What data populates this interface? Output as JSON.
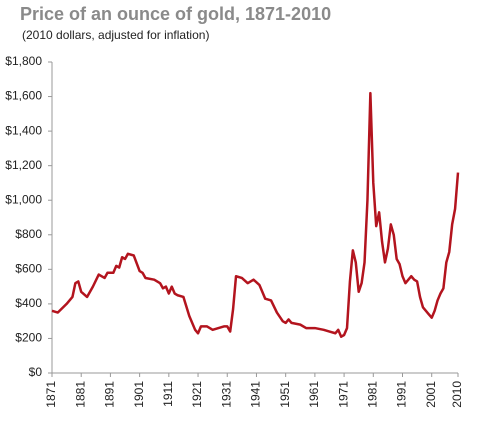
{
  "chart_data": {
    "type": "line",
    "title": "Price of an ounce of gold, 1871-2010",
    "subtitle": "(2010 dollars, adjusted for inflation)",
    "color": "#b3141e",
    "xlim": [
      1871,
      2010
    ],
    "xticks": [
      1871,
      1881,
      1891,
      1901,
      1911,
      1921,
      1931,
      1941,
      1951,
      1961,
      1971,
      1981,
      1991,
      2001,
      2010
    ],
    "ylim": [
      0,
      1800
    ],
    "yticks": [
      {
        "value": 0,
        "label": "$0"
      },
      {
        "value": 200,
        "label": "$200"
      },
      {
        "value": 400,
        "label": "$400"
      },
      {
        "value": 600,
        "label": "$600"
      },
      {
        "value": 800,
        "label": "$800"
      },
      {
        "value": 1000,
        "label": "$1,000"
      },
      {
        "value": 1200,
        "label": "$1,200"
      },
      {
        "value": 1400,
        "label": "$1,400"
      },
      {
        "value": 1600,
        "label": "$1,600"
      },
      {
        "value": 1800,
        "label": "$1,800"
      }
    ],
    "grid": false,
    "x": [
      1871,
      1873,
      1876,
      1878,
      1879,
      1880,
      1881,
      1883,
      1885,
      1887,
      1889,
      1890,
      1892,
      1893,
      1894,
      1895,
      1896,
      1897,
      1899,
      1901,
      1902,
      1903,
      1906,
      1908,
      1909,
      1910,
      1911,
      1912,
      1913,
      1914,
      1916,
      1918,
      1920,
      1921,
      1922,
      1924,
      1926,
      1928,
      1930,
      1931,
      1932,
      1933,
      1934,
      1936,
      1938,
      1940,
      1942,
      1943,
      1944,
      1946,
      1948,
      1950,
      1951,
      1952,
      1953,
      1956,
      1958,
      1961,
      1964,
      1966,
      1968,
      1969,
      1970,
      1971,
      1972,
      1973,
      1974,
      1975,
      1976,
      1977,
      1978,
      1979,
      1980,
      1981,
      1982,
      1983,
      1984,
      1985,
      1986,
      1987,
      1988,
      1989,
      1990,
      1991,
      1992,
      1993,
      1994,
      1995,
      1996,
      1997,
      1998,
      1999,
      2000,
      2001,
      2002,
      2003,
      2004,
      2005,
      2006,
      2007,
      2008,
      2009,
      2010
    ],
    "values": [
      360,
      350,
      400,
      440,
      520,
      530,
      470,
      440,
      500,
      570,
      550,
      580,
      580,
      620,
      610,
      670,
      660,
      690,
      680,
      590,
      580,
      550,
      540,
      520,
      490,
      500,
      460,
      500,
      460,
      450,
      440,
      330,
      250,
      230,
      270,
      270,
      250,
      260,
      270,
      270,
      240,
      370,
      560,
      550,
      520,
      540,
      510,
      470,
      430,
      420,
      350,
      300,
      290,
      310,
      290,
      280,
      260,
      260,
      250,
      240,
      230,
      250,
      210,
      220,
      260,
      530,
      710,
      640,
      470,
      520,
      640,
      1000,
      1620,
      1100,
      850,
      930,
      760,
      640,
      720,
      860,
      800,
      660,
      630,
      560,
      520,
      540,
      560,
      540,
      530,
      440,
      380,
      360,
      340,
      320,
      360,
      420,
      460,
      490,
      640,
      700,
      860,
      950,
      1160
    ]
  }
}
